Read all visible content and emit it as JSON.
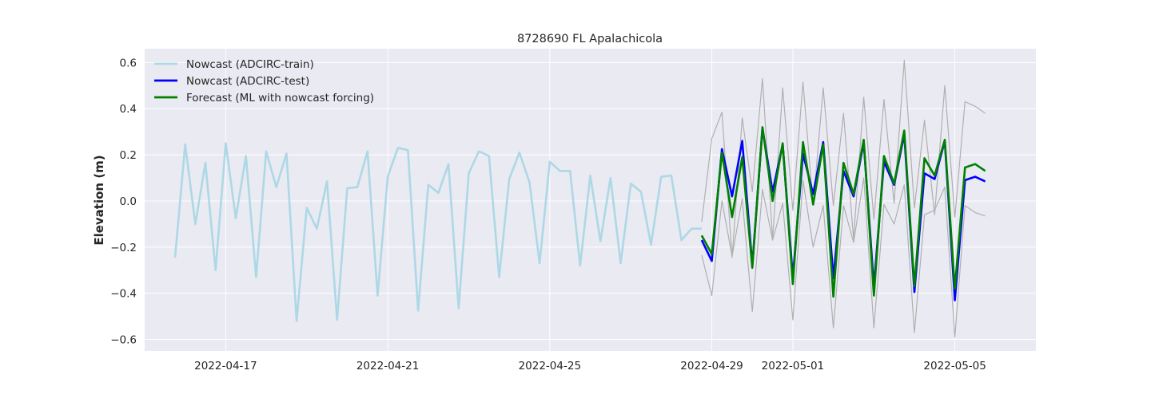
{
  "chart_data": {
    "type": "line",
    "title": "8728690 FL Apalachicola",
    "xlabel": "",
    "ylabel": "Elevation (m)",
    "x_axis": {
      "start": "2022-04-15",
      "end": "2022-05-07",
      "ticks": [
        "2022-04-17",
        "2022-04-21",
        "2022-04-25",
        "2022-04-29",
        "2022-05-01",
        "2022-05-05"
      ]
    },
    "ylim": [
      -0.65,
      0.66
    ],
    "yticks": [
      -0.6,
      -0.4,
      -0.2,
      0.0,
      0.2,
      0.4,
      0.6
    ],
    "ytick_labels": [
      "−0.6",
      "−0.4",
      "−0.2",
      "0.0",
      "0.2",
      "0.4",
      "0.6"
    ],
    "grid": true,
    "legend_position": "top-left",
    "colors": {
      "train": "#add8e6",
      "test": "#0000ff",
      "forecast": "#008000",
      "bounds": "#b0b0b0",
      "plot_bg": "#eaeaf2",
      "grid": "#ffffff"
    },
    "series": [
      {
        "name": "Nowcast (ADCIRC-train)",
        "color": "#add8e6",
        "x": [
          "2022-04-15 18:00",
          "2022-04-16 00:00",
          "2022-04-16 06:00",
          "2022-04-16 12:00",
          "2022-04-16 18:00",
          "2022-04-17 00:00",
          "2022-04-17 06:00",
          "2022-04-17 12:00",
          "2022-04-17 18:00",
          "2022-04-18 00:00",
          "2022-04-18 06:00",
          "2022-04-18 12:00",
          "2022-04-18 18:00",
          "2022-04-19 00:00",
          "2022-04-19 06:00",
          "2022-04-19 12:00",
          "2022-04-19 18:00",
          "2022-04-20 00:00",
          "2022-04-20 06:00",
          "2022-04-20 12:00",
          "2022-04-20 18:00",
          "2022-04-21 00:00",
          "2022-04-21 06:00",
          "2022-04-21 12:00",
          "2022-04-21 18:00",
          "2022-04-22 00:00",
          "2022-04-22 06:00",
          "2022-04-22 12:00",
          "2022-04-22 18:00",
          "2022-04-23 00:00",
          "2022-04-23 06:00",
          "2022-04-23 12:00",
          "2022-04-23 18:00",
          "2022-04-24 00:00",
          "2022-04-24 06:00",
          "2022-04-24 12:00",
          "2022-04-24 18:00",
          "2022-04-25 00:00",
          "2022-04-25 06:00",
          "2022-04-25 12:00",
          "2022-04-25 18:00",
          "2022-04-26 00:00",
          "2022-04-26 06:00",
          "2022-04-26 12:00",
          "2022-04-26 18:00",
          "2022-04-27 00:00",
          "2022-04-27 06:00",
          "2022-04-27 12:00",
          "2022-04-27 18:00",
          "2022-04-28 00:00",
          "2022-04-28 06:00",
          "2022-04-28 12:00",
          "2022-04-28 18:00"
        ],
        "y": [
          -0.245,
          0.245,
          -0.1,
          0.165,
          -0.3,
          0.25,
          -0.075,
          0.195,
          -0.33,
          0.215,
          0.06,
          0.205,
          -0.52,
          -0.03,
          -0.12,
          0.085,
          -0.515,
          0.055,
          0.06,
          0.215,
          -0.41,
          0.105,
          0.23,
          0.22,
          -0.475,
          0.07,
          0.035,
          0.16,
          -0.465,
          0.12,
          0.215,
          0.195,
          -0.33,
          0.095,
          0.21,
          0.08,
          -0.27,
          0.17,
          0.13,
          0.13,
          -0.28,
          0.11,
          -0.175,
          0.1,
          -0.27,
          0.075,
          0.04,
          -0.19,
          0.105,
          0.11,
          -0.17,
          -0.12,
          -0.12
        ]
      },
      {
        "name": "Nowcast (ADCIRC-test)",
        "color": "#0000ff",
        "x": [
          "2022-04-28 18:00",
          "2022-04-29 00:00",
          "2022-04-29 06:00",
          "2022-04-29 12:00",
          "2022-04-29 18:00",
          "2022-04-30 00:00",
          "2022-04-30 06:00",
          "2022-04-30 12:00",
          "2022-04-30 18:00",
          "2022-05-01 00:00",
          "2022-05-01 06:00",
          "2022-05-01 12:00",
          "2022-05-01 18:00",
          "2022-05-02 00:00",
          "2022-05-02 06:00",
          "2022-05-02 12:00",
          "2022-05-02 18:00",
          "2022-05-03 00:00",
          "2022-05-03 06:00",
          "2022-05-03 12:00",
          "2022-05-03 18:00",
          "2022-05-04 00:00",
          "2022-05-04 06:00",
          "2022-05-04 12:00",
          "2022-05-04 18:00",
          "2022-05-05 00:00",
          "2022-05-05 06:00",
          "2022-05-05 12:00",
          "2022-05-05 18:00"
        ],
        "y": [
          -0.17,
          -0.26,
          0.225,
          0.02,
          0.26,
          -0.28,
          0.315,
          0.04,
          0.245,
          -0.33,
          0.205,
          0.03,
          0.255,
          -0.335,
          0.13,
          0.02,
          0.255,
          -0.37,
          0.17,
          0.07,
          0.29,
          -0.395,
          0.12,
          0.095,
          0.26,
          -0.43,
          0.09,
          0.105,
          0.085
        ]
      },
      {
        "name": "Forecast (ML with nowcast forcing)",
        "color": "#008000",
        "x": [
          "2022-04-28 18:00",
          "2022-04-29 00:00",
          "2022-04-29 06:00",
          "2022-04-29 12:00",
          "2022-04-29 18:00",
          "2022-04-30 00:00",
          "2022-04-30 06:00",
          "2022-04-30 12:00",
          "2022-04-30 18:00",
          "2022-05-01 00:00",
          "2022-05-01 06:00",
          "2022-05-01 12:00",
          "2022-05-01 18:00",
          "2022-05-02 00:00",
          "2022-05-02 06:00",
          "2022-05-02 12:00",
          "2022-05-02 18:00",
          "2022-05-03 00:00",
          "2022-05-03 06:00",
          "2022-05-03 12:00",
          "2022-05-03 18:00",
          "2022-05-04 00:00",
          "2022-05-04 06:00",
          "2022-05-04 12:00",
          "2022-05-04 18:00",
          "2022-05-05 00:00",
          "2022-05-05 06:00",
          "2022-05-05 12:00",
          "2022-05-05 18:00"
        ],
        "y": [
          -0.15,
          -0.23,
          0.21,
          -0.07,
          0.19,
          -0.29,
          0.32,
          0.0,
          0.25,
          -0.36,
          0.255,
          -0.015,
          0.245,
          -0.415,
          0.165,
          0.03,
          0.265,
          -0.41,
          0.195,
          0.075,
          0.305,
          -0.37,
          0.185,
          0.11,
          0.265,
          -0.38,
          0.145,
          0.16,
          0.13
        ]
      },
      {
        "color": "#b0b0b0",
        "x": [
          "2022-04-28 18:00",
          "2022-04-29 00:00",
          "2022-04-29 06:00",
          "2022-04-29 12:00",
          "2022-04-29 18:00",
          "2022-04-30 00:00",
          "2022-04-30 06:00",
          "2022-04-30 12:00",
          "2022-04-30 18:00",
          "2022-05-01 00:00",
          "2022-05-01 06:00",
          "2022-05-01 12:00",
          "2022-05-01 18:00",
          "2022-05-02 00:00",
          "2022-05-02 06:00",
          "2022-05-02 12:00",
          "2022-05-02 18:00",
          "2022-05-03 00:00",
          "2022-05-03 06:00",
          "2022-05-03 12:00",
          "2022-05-03 18:00",
          "2022-05-04 00:00",
          "2022-05-04 06:00",
          "2022-05-04 12:00",
          "2022-05-04 18:00",
          "2022-05-05 00:00",
          "2022-05-05 06:00",
          "2022-05-05 12:00",
          "2022-05-05 18:00"
        ],
        "y": [
          -0.09,
          0.27,
          0.385,
          -0.245,
          0.36,
          0.04,
          0.53,
          -0.165,
          0.49,
          -0.04,
          0.515,
          -0.02,
          0.49,
          -0.02,
          0.38,
          -0.165,
          0.45,
          -0.08,
          0.44,
          -0.01,
          0.61,
          -0.03,
          0.35,
          -0.06,
          0.5,
          -0.07,
          0.43,
          0.41,
          0.38
        ]
      },
      {
        "color": "#b0b0b0",
        "x": [
          "2022-04-28 18:00",
          "2022-04-29 00:00",
          "2022-04-29 06:00",
          "2022-04-29 12:00",
          "2022-04-29 18:00",
          "2022-04-30 00:00",
          "2022-04-30 06:00",
          "2022-04-30 12:00",
          "2022-04-30 18:00",
          "2022-05-01 00:00",
          "2022-05-01 06:00",
          "2022-05-01 12:00",
          "2022-05-01 18:00",
          "2022-05-02 00:00",
          "2022-05-02 06:00",
          "2022-05-02 12:00",
          "2022-05-02 18:00",
          "2022-05-03 00:00",
          "2022-05-03 06:00",
          "2022-05-03 12:00",
          "2022-05-03 18:00",
          "2022-05-04 00:00",
          "2022-05-04 06:00",
          "2022-05-04 12:00",
          "2022-05-04 18:00",
          "2022-05-05 00:00",
          "2022-05-05 06:00",
          "2022-05-05 12:00",
          "2022-05-05 18:00"
        ],
        "y": [
          -0.235,
          -0.41,
          0.0,
          -0.24,
          0.01,
          -0.48,
          0.05,
          -0.17,
          -0.01,
          -0.515,
          0.09,
          -0.2,
          -0.02,
          -0.55,
          -0.02,
          -0.18,
          0.1,
          -0.55,
          -0.015,
          -0.1,
          0.07,
          -0.57,
          -0.06,
          -0.04,
          0.06,
          -0.59,
          -0.02,
          -0.05,
          -0.065
        ]
      }
    ]
  }
}
